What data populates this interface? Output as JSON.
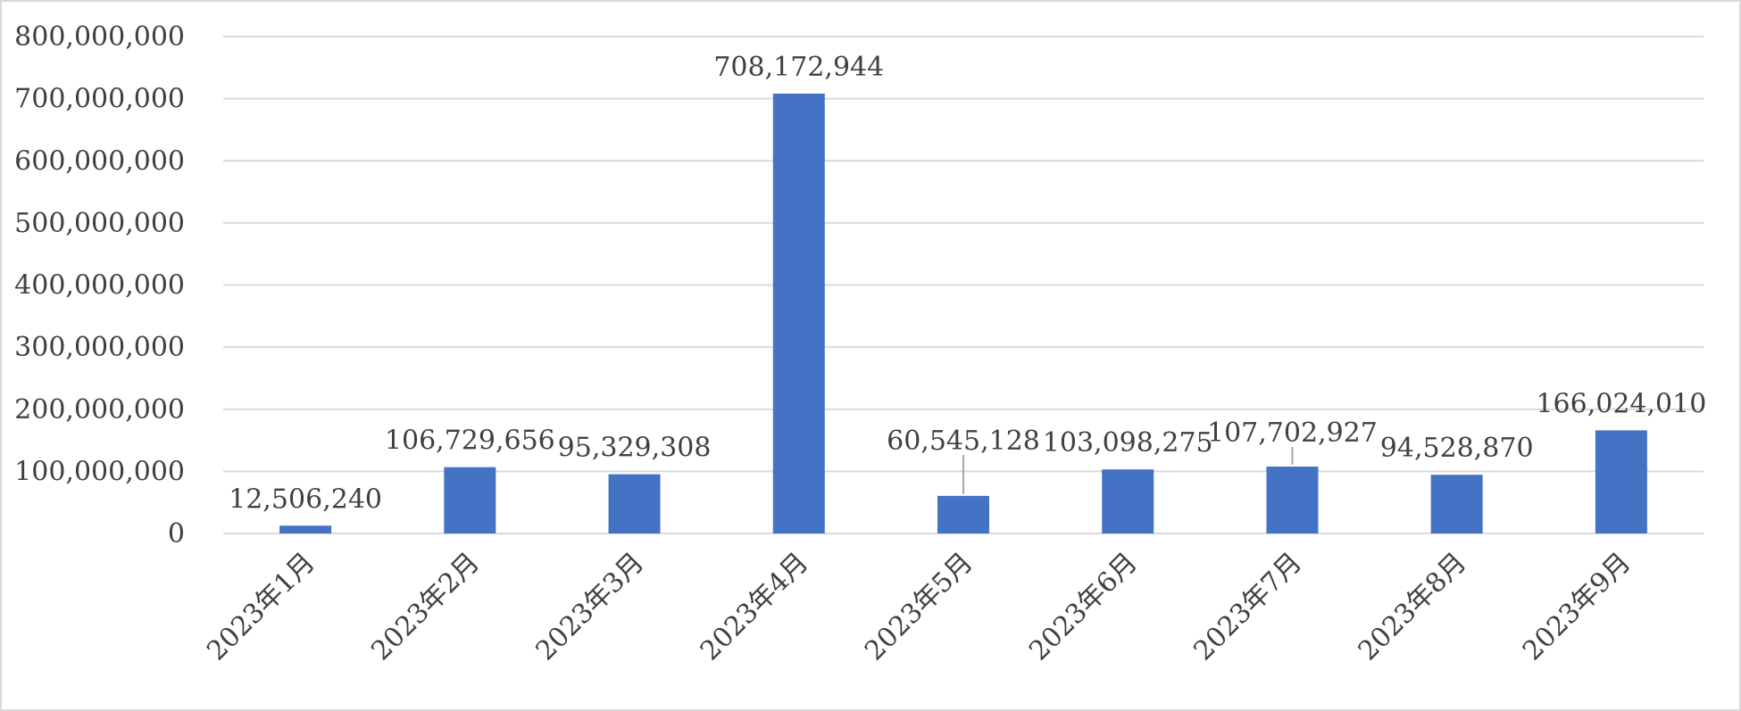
{
  "chart_data": {
    "type": "bar",
    "categories": [
      "2023年1月",
      "2023年2月",
      "2023年3月",
      "2023年4月",
      "2023年5月",
      "2023年6月",
      "2023年7月",
      "2023年8月",
      "2023年9月"
    ],
    "values": [
      12506240,
      106729656,
      95329308,
      708172944,
      60545128,
      103098275,
      107702927,
      94528870,
      166024010
    ],
    "data_labels": [
      "12,506,240",
      "106,729,656",
      "95,329,308",
      "708,172,944",
      "60,545,128",
      "103,098,275",
      "107,702,927",
      "94,528,870",
      "166,024,010"
    ],
    "yticks": [
      "0",
      "100,000,000",
      "200,000,000",
      "300,000,000",
      "400,000,000",
      "500,000,000",
      "600,000,000",
      "700,000,000",
      "800,000,000"
    ],
    "ylim": [
      0,
      800000000
    ],
    "title": "",
    "xlabel": "",
    "ylabel": "",
    "bar_color": "#4472c4",
    "grid": true,
    "legend": "none"
  }
}
